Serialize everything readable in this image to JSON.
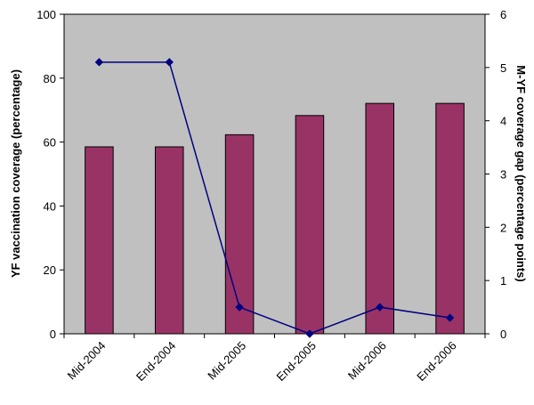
{
  "chart_data": {
    "type": "bar",
    "categories": [
      "Mid-2004",
      "End-2004",
      "Mid-2005",
      "End-2005",
      "Mid-2006",
      "End-2006"
    ],
    "series": [
      {
        "kind": "bar",
        "axis": "left",
        "color": "#993366",
        "values": [
          58.5,
          58.5,
          62.3,
          68.3,
          72.1,
          72.1
        ]
      },
      {
        "kind": "line",
        "axis": "right",
        "color": "#000080",
        "marker": "diamond",
        "values": [
          5.1,
          5.1,
          0.5,
          0.0,
          0.5,
          0.3
        ]
      }
    ],
    "ylabel": "YF vaccination coverage (percentage)",
    "ylim": [
      0,
      100
    ],
    "yticks": [
      "0",
      "20",
      "40",
      "60",
      "80",
      "100"
    ],
    "y2label": "M-YF coverage gap (percentage points)",
    "y2lim": [
      0,
      6
    ],
    "y2ticks": [
      "0",
      "1",
      "2",
      "3",
      "4",
      "5",
      "6"
    ],
    "plot_background": "#c0c0c0",
    "grid": false,
    "legend": "none"
  }
}
